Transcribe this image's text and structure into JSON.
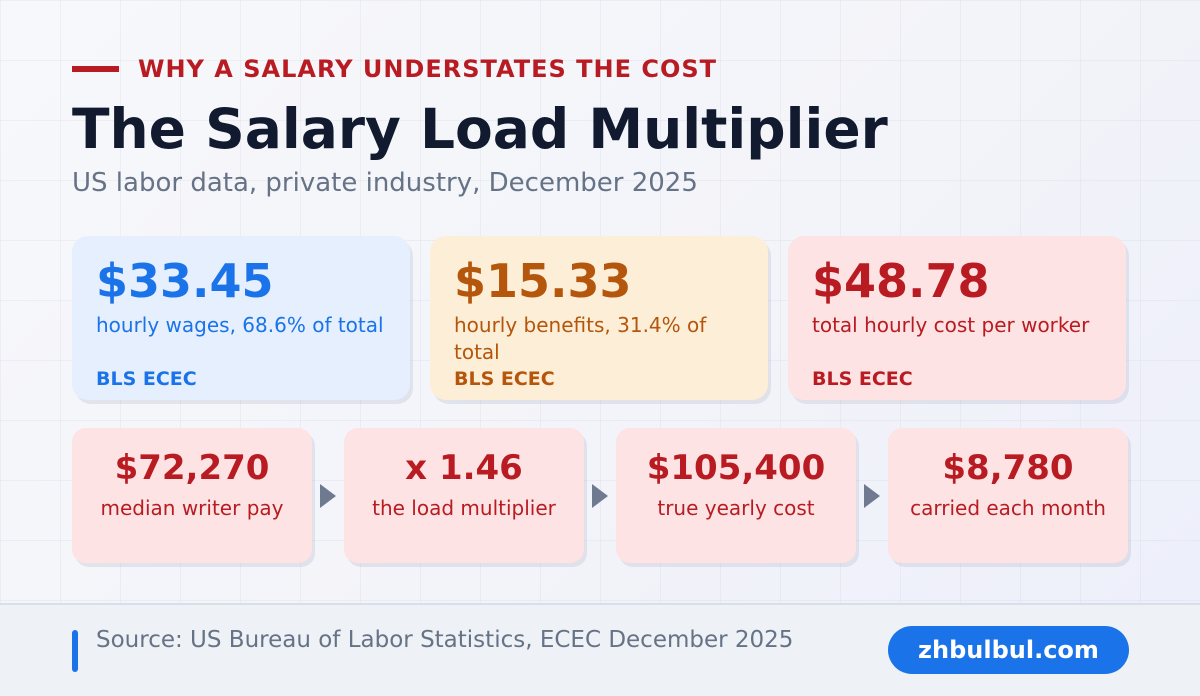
{
  "header": {
    "eyebrow": "WHY A SALARY UNDERSTATES THE COST",
    "title": "The Salary Load Multiplier",
    "subtitle": "US labor data, private industry, December 2025"
  },
  "stats": [
    {
      "value": "$33.45",
      "description": "hourly wages, 68.6% of total",
      "source": "BLS ECEC",
      "color": "#1a73e8"
    },
    {
      "value": "$15.33",
      "description": "hourly benefits, 31.4% of total",
      "source": "BLS ECEC",
      "color": "#b4560b"
    },
    {
      "value": "$48.78",
      "description": "total hourly cost per worker",
      "source": "BLS ECEC",
      "color": "#b81c22"
    }
  ],
  "flow": [
    {
      "value": "$72,270",
      "label": "median writer pay"
    },
    {
      "value": "x 1.46",
      "label": "the load multiplier"
    },
    {
      "value": "$105,400",
      "label": "true yearly cost"
    },
    {
      "value": "$8,780",
      "label": "carried each month"
    }
  ],
  "footer": {
    "source": "Source: US Bureau of Labor Statistics, ECEC December 2025",
    "brand": "zhbulbul.com"
  },
  "colors": {
    "accent_red": "#b81c22",
    "accent_blue": "#1a73e8",
    "accent_orange": "#b4560b",
    "title": "#111a2e",
    "muted": "#667386"
  },
  "icons": {
    "flow_arrow": "triangle-right-icon"
  }
}
